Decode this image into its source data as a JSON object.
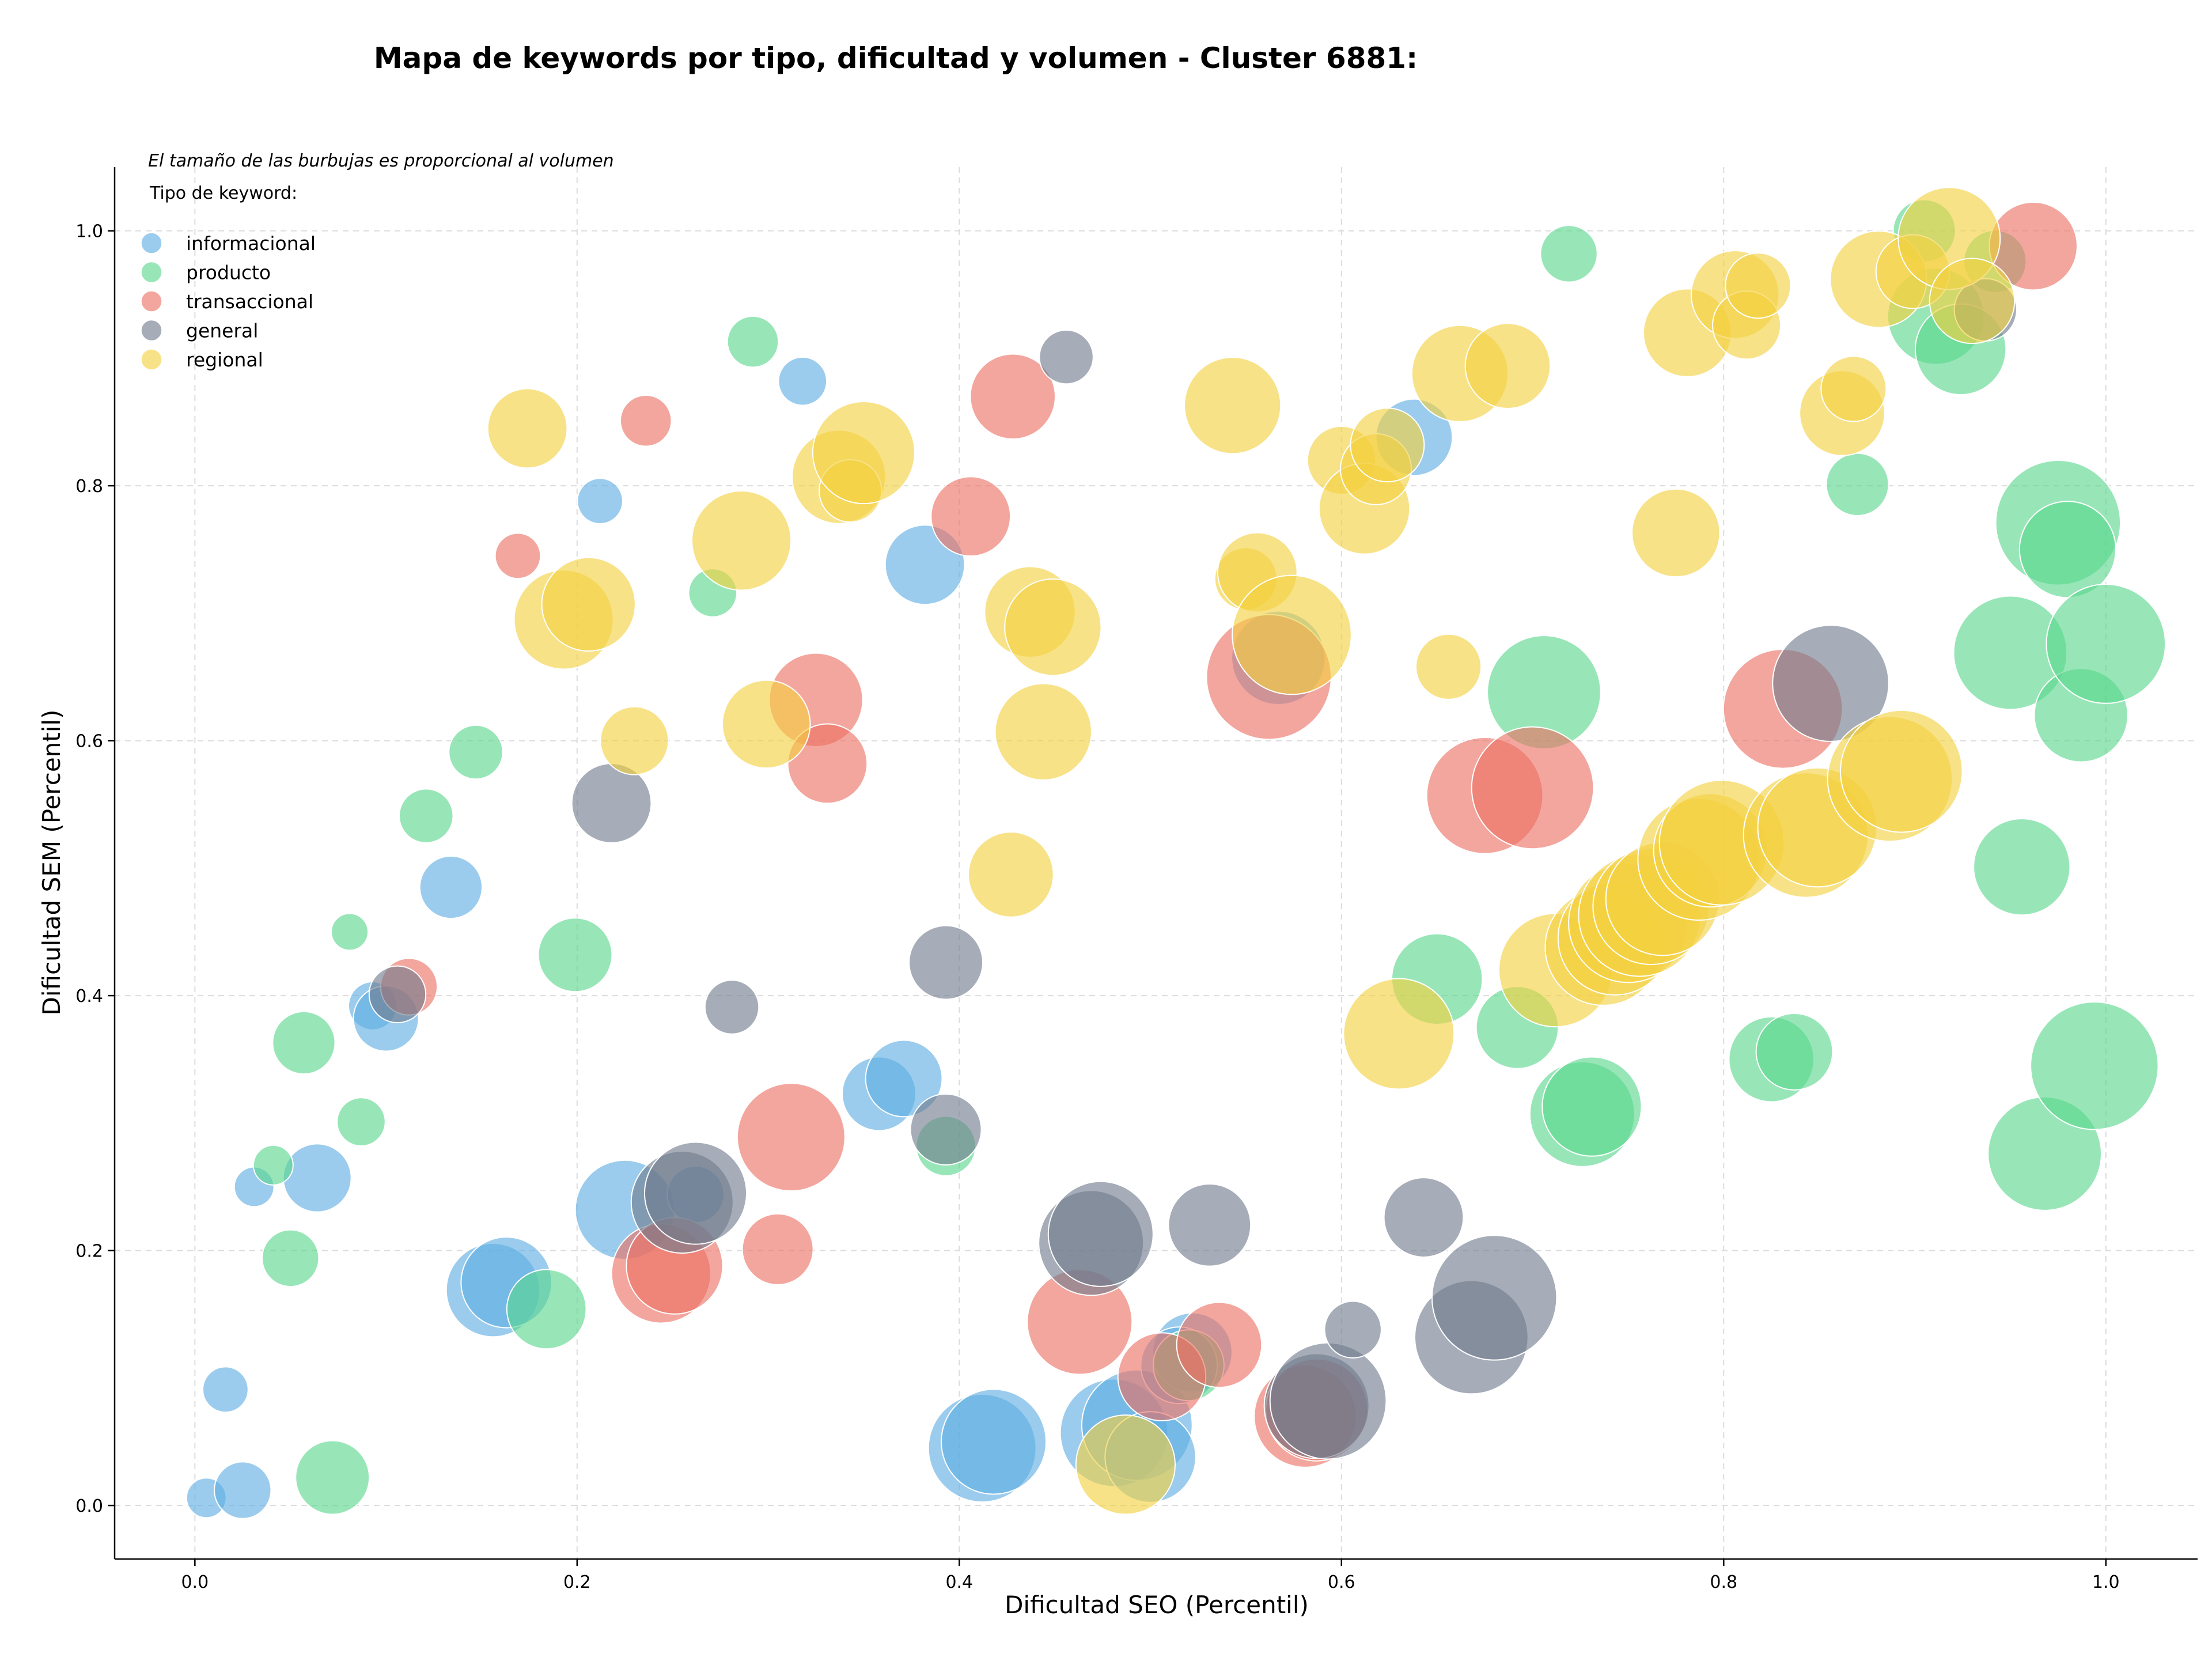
{
  "chart_data": {
    "type": "scatter",
    "title": "Mapa de keywords por tipo, dificultad y volumen - Cluster 6881:",
    "xlabel": "Dificultad SEO (Percentil)",
    "ylabel": "Dificultad SEM (Percentil)",
    "xlim": [
      -0.042,
      1.048
    ],
    "ylim": [
      -0.042,
      1.05
    ],
    "xticks": [
      0.0,
      0.2,
      0.4,
      0.6,
      0.8,
      1.0
    ],
    "yticks": [
      0.0,
      0.2,
      0.4,
      0.6,
      0.8,
      1.0
    ],
    "xtick_labels": [
      "0.0",
      "0.2",
      "0.4",
      "0.6",
      "0.8",
      "1.0"
    ],
    "ytick_labels": [
      "0.0",
      "0.2",
      "0.4",
      "0.6",
      "0.8",
      "1.0"
    ],
    "grid": true,
    "note": "El tamaño de las burbujas es proporcional al volumen",
    "legend_title": "Tipo de keyword:",
    "legend_placement": "top-left",
    "series": [
      {
        "name": "informacional",
        "color": "#5dade2",
        "points": [
          [
            0.006,
            0.006,
            14
          ],
          [
            0.025,
            0.012,
            20
          ],
          [
            0.031,
            0.25,
            14
          ],
          [
            0.016,
            0.091,
            16
          ],
          [
            0.064,
            0.257,
            24
          ],
          [
            0.093,
            0.392,
            17
          ],
          [
            0.1,
            0.382,
            23
          ],
          [
            0.134,
            0.485,
            22
          ],
          [
            0.156,
            0.169,
            33
          ],
          [
            0.163,
            0.175,
            32
          ],
          [
            0.212,
            0.788,
            16
          ],
          [
            0.225,
            0.232,
            35
          ],
          [
            0.318,
            0.882,
            17
          ],
          [
            0.358,
            0.323,
            26
          ],
          [
            0.371,
            0.335,
            27
          ],
          [
            0.382,
            0.738,
            28
          ],
          [
            0.412,
            0.045,
            38
          ],
          [
            0.418,
            0.05,
            37
          ],
          [
            0.481,
            0.057,
            38
          ],
          [
            0.493,
            0.063,
            39
          ],
          [
            0.5,
            0.038,
            32
          ],
          [
            0.522,
            0.12,
            28
          ],
          [
            0.567,
            0.665,
            33
          ],
          [
            0.638,
            0.838,
            27
          ],
          [
            0.515,
            0.11,
            27
          ],
          [
            0.262,
            0.244,
            20
          ]
        ]
      },
      {
        "name": "producto",
        "color": "#58d68d",
        "points": [
          [
            0.041,
            0.267,
            14
          ],
          [
            0.05,
            0.194,
            20
          ],
          [
            0.057,
            0.363,
            22
          ],
          [
            0.072,
            0.022,
            26
          ],
          [
            0.081,
            0.45,
            13
          ],
          [
            0.087,
            0.301,
            17
          ],
          [
            0.121,
            0.541,
            19
          ],
          [
            0.147,
            0.591,
            19
          ],
          [
            0.184,
            0.154,
            28
          ],
          [
            0.199,
            0.432,
            26
          ],
          [
            0.271,
            0.716,
            17
          ],
          [
            0.292,
            0.913,
            18
          ],
          [
            0.393,
            0.282,
            21
          ],
          [
            0.65,
            0.413,
            32
          ],
          [
            0.692,
            0.375,
            29
          ],
          [
            0.706,
            0.638,
            40
          ],
          [
            0.719,
            0.982,
            20
          ],
          [
            0.726,
            0.307,
            37
          ],
          [
            0.731,
            0.313,
            35
          ],
          [
            0.825,
            0.35,
            30
          ],
          [
            0.837,
            0.356,
            27
          ],
          [
            0.87,
            0.801,
            22
          ],
          [
            0.905,
            1.0,
            22
          ],
          [
            0.911,
            0.933,
            34
          ],
          [
            0.924,
            0.907,
            32
          ],
          [
            0.942,
            0.976,
            22
          ],
          [
            0.95,
            0.669,
            40
          ],
          [
            0.956,
            0.501,
            34
          ],
          [
            0.968,
            0.276,
            40
          ],
          [
            0.975,
            0.771,
            44
          ],
          [
            0.98,
            0.75,
            34
          ],
          [
            0.987,
            0.62,
            33
          ],
          [
            0.994,
            0.345,
            45
          ],
          [
            1.0,
            0.676,
            42
          ],
          [
            0.52,
            0.11,
            25
          ]
        ]
      },
      {
        "name": "transaccional",
        "color": "#ec7063",
        "points": [
          [
            0.112,
            0.407,
            20
          ],
          [
            0.169,
            0.745,
            16
          ],
          [
            0.236,
            0.851,
            18
          ],
          [
            0.244,
            0.182,
            35
          ],
          [
            0.251,
            0.188,
            34
          ],
          [
            0.305,
            0.201,
            25
          ],
          [
            0.312,
            0.289,
            38
          ],
          [
            0.325,
            0.632,
            33
          ],
          [
            0.331,
            0.582,
            28
          ],
          [
            0.406,
            0.776,
            28
          ],
          [
            0.428,
            0.87,
            30
          ],
          [
            0.463,
            0.144,
            37
          ],
          [
            0.506,
            0.101,
            31
          ],
          [
            0.536,
            0.126,
            30
          ],
          [
            0.562,
            0.65,
            44
          ],
          [
            0.581,
            0.07,
            36
          ],
          [
            0.587,
            0.075,
            36
          ],
          [
            0.675,
            0.557,
            41
          ],
          [
            0.7,
            0.563,
            43
          ],
          [
            0.831,
            0.625,
            42
          ],
          [
            0.962,
            0.988,
            31
          ]
        ]
      },
      {
        "name": "general",
        "color": "#707b8c",
        "points": [
          [
            0.106,
            0.401,
            20
          ],
          [
            0.218,
            0.551,
            28
          ],
          [
            0.255,
            0.238,
            36
          ],
          [
            0.262,
            0.245,
            36
          ],
          [
            0.281,
            0.391,
            19
          ],
          [
            0.393,
            0.426,
            26
          ],
          [
            0.393,
            0.295,
            25
          ],
          [
            0.456,
            0.901,
            19
          ],
          [
            0.469,
            0.206,
            37
          ],
          [
            0.474,
            0.213,
            37
          ],
          [
            0.531,
            0.22,
            29
          ],
          [
            0.587,
            0.078,
            37
          ],
          [
            0.593,
            0.082,
            41
          ],
          [
            0.606,
            0.138,
            20
          ],
          [
            0.643,
            0.226,
            28
          ],
          [
            0.668,
            0.132,
            40
          ],
          [
            0.68,
            0.163,
            44
          ],
          [
            0.856,
            0.645,
            41
          ],
          [
            0.937,
            0.938,
            22
          ]
        ]
      },
      {
        "name": "regional",
        "color": "#f4d03f",
        "points": [
          [
            0.174,
            0.845,
            28
          ],
          [
            0.193,
            0.695,
            35
          ],
          [
            0.206,
            0.707,
            33
          ],
          [
            0.23,
            0.6,
            24
          ],
          [
            0.286,
            0.757,
            35
          ],
          [
            0.299,
            0.613,
            31
          ],
          [
            0.337,
            0.807,
            33
          ],
          [
            0.343,
            0.796,
            22
          ],
          [
            0.35,
            0.826,
            36
          ],
          [
            0.427,
            0.495,
            30
          ],
          [
            0.437,
            0.701,
            32
          ],
          [
            0.444,
            0.607,
            34
          ],
          [
            0.449,
            0.689,
            34
          ],
          [
            0.487,
            0.032,
            35
          ],
          [
            0.543,
            0.863,
            34
          ],
          [
            0.55,
            0.727,
            22
          ],
          [
            0.556,
            0.732,
            28
          ],
          [
            0.574,
            0.683,
            42
          ],
          [
            0.6,
            0.82,
            24
          ],
          [
            0.612,
            0.782,
            32
          ],
          [
            0.618,
            0.813,
            25
          ],
          [
            0.624,
            0.832,
            26
          ],
          [
            0.63,
            0.37,
            39
          ],
          [
            0.656,
            0.658,
            23
          ],
          [
            0.662,
            0.888,
            34
          ],
          [
            0.687,
            0.894,
            30
          ],
          [
            0.712,
            0.42,
            40
          ],
          [
            0.737,
            0.438,
            41
          ],
          [
            0.743,
            0.445,
            40
          ],
          [
            0.75,
            0.457,
            42
          ],
          [
            0.756,
            0.463,
            43
          ],
          [
            0.762,
            0.47,
            41
          ],
          [
            0.768,
            0.476,
            40
          ],
          [
            0.775,
            0.763,
            31
          ],
          [
            0.781,
            0.92,
            31
          ],
          [
            0.787,
            0.507,
            43
          ],
          [
            0.793,
            0.514,
            40
          ],
          [
            0.799,
            0.52,
            44
          ],
          [
            0.806,
            0.95,
            31
          ],
          [
            0.812,
            0.926,
            24
          ],
          [
            0.818,
            0.957,
            23
          ],
          [
            0.843,
            0.526,
            44
          ],
          [
            0.849,
            0.532,
            42
          ],
          [
            0.862,
            0.857,
            30
          ],
          [
            0.868,
            0.876,
            23
          ],
          [
            0.881,
            0.962,
            34
          ],
          [
            0.887,
            0.57,
            44
          ],
          [
            0.893,
            0.576,
            43
          ],
          [
            0.899,
            0.968,
            26
          ],
          [
            0.918,
            0.994,
            36
          ],
          [
            0.93,
            0.945,
            30
          ]
        ]
      }
    ]
  }
}
